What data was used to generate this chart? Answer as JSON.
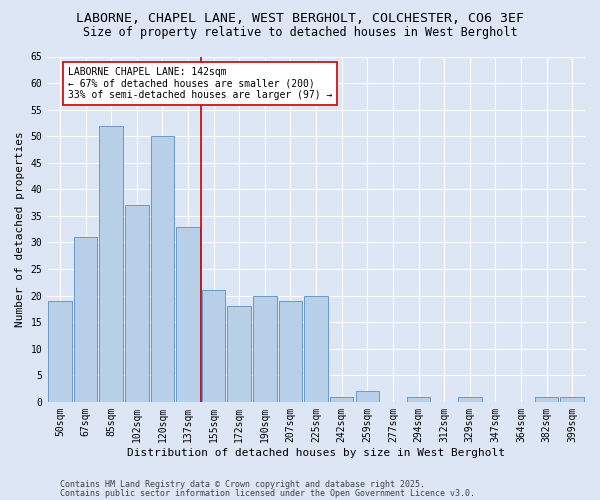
{
  "title_line1": "LABORNE, CHAPEL LANE, WEST BERGHOLT, COLCHESTER, CO6 3EF",
  "title_line2": "Size of property relative to detached houses in West Bergholt",
  "xlabel": "Distribution of detached houses by size in West Bergholt",
  "ylabel": "Number of detached properties",
  "categories": [
    "50sqm",
    "67sqm",
    "85sqm",
    "102sqm",
    "120sqm",
    "137sqm",
    "155sqm",
    "172sqm",
    "190sqm",
    "207sqm",
    "225sqm",
    "242sqm",
    "259sqm",
    "277sqm",
    "294sqm",
    "312sqm",
    "329sqm",
    "347sqm",
    "364sqm",
    "382sqm",
    "399sqm"
  ],
  "values": [
    19,
    31,
    52,
    37,
    50,
    33,
    21,
    18,
    20,
    19,
    20,
    1,
    2,
    0,
    1,
    0,
    1,
    0,
    0,
    1,
    1
  ],
  "bar_color": "#b8cfe8",
  "bar_edge_color": "#6699cc",
  "background_color": "#dce6f5",
  "grid_color": "#ffffff",
  "vline_x": 5.5,
  "vline_color": "#cc0000",
  "annotation_text": "LABORNE CHAPEL LANE: 142sqm\n← 67% of detached houses are smaller (200)\n33% of semi-detached houses are larger (97) →",
  "annotation_box_color": "#ffffff",
  "annotation_box_edge": "#cc0000",
  "ylim": [
    0,
    65
  ],
  "yticks": [
    0,
    5,
    10,
    15,
    20,
    25,
    30,
    35,
    40,
    45,
    50,
    55,
    60,
    65
  ],
  "footer_line1": "Contains HM Land Registry data © Crown copyright and database right 2025.",
  "footer_line2": "Contains public sector information licensed under the Open Government Licence v3.0.",
  "title_fontsize": 9.5,
  "subtitle_fontsize": 8.5,
  "axis_label_fontsize": 8,
  "tick_fontsize": 7,
  "annotation_fontsize": 7,
  "footer_fontsize": 6
}
